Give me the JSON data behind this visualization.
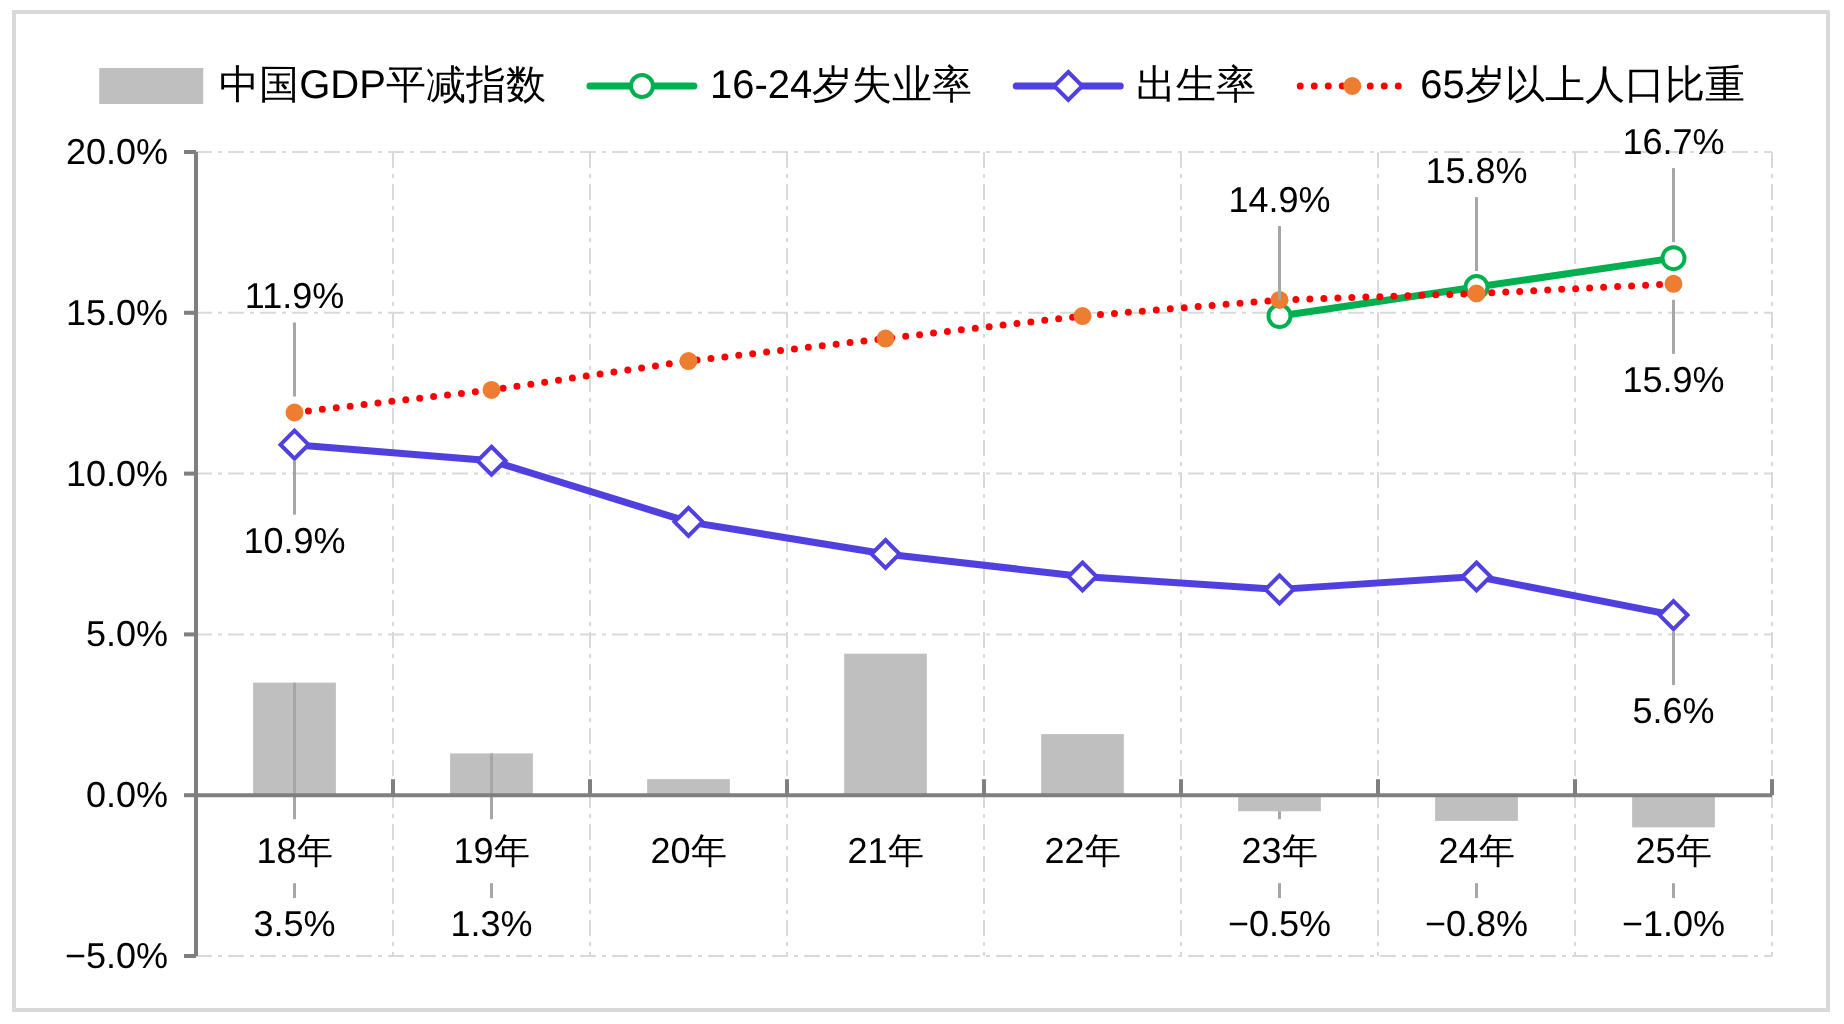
{
  "chart_data": {
    "type": "bar",
    "categories": [
      "18年",
      "19年",
      "20年",
      "21年",
      "22年",
      "23年",
      "24年",
      "25年"
    ],
    "ylim": [
      -5,
      20
    ],
    "yticks": [
      {
        "value": -5,
        "label": "−5.0%"
      },
      {
        "value": 0,
        "label": "0.0%"
      },
      {
        "value": 5,
        "label": "5.0%"
      },
      {
        "value": 10,
        "label": "10.0%"
      },
      {
        "value": 15,
        "label": "15.0%"
      },
      {
        "value": 20,
        "label": "20.0%"
      }
    ],
    "grid": true,
    "legend": "top",
    "series": [
      {
        "name": "中国GDP平减指数",
        "color": "#bfbfbf",
        "values": [
          3.5,
          1.3,
          0.5,
          4.4,
          1.9,
          -0.5,
          -0.8,
          -1.0
        ],
        "value_labels": [
          "3.5%",
          "1.3%",
          null,
          null,
          null,
          "−0.5%",
          "−0.8%",
          "−1.0%"
        ]
      },
      {
        "name": "16-24岁失业率",
        "type": "line",
        "color": "#00b050",
        "marker": "circle",
        "values": [
          null,
          null,
          null,
          null,
          null,
          14.9,
          15.8,
          16.7
        ],
        "value_labels": [
          null,
          null,
          null,
          null,
          null,
          "14.9%",
          "15.8%",
          "16.7%"
        ]
      },
      {
        "name": "出生率",
        "type": "line",
        "color": "#5040e0",
        "marker": "diamond",
        "values": [
          10.9,
          10.4,
          8.5,
          7.5,
          6.8,
          6.4,
          6.8,
          5.6
        ],
        "value_labels": [
          "10.9%",
          null,
          null,
          null,
          null,
          null,
          null,
          "5.6%"
        ]
      },
      {
        "name": "65岁以上人口比重",
        "type": "line",
        "color": "#ff0000",
        "colors": [
          "#ed7d31",
          "#ed7d31",
          "#ed7d31",
          "#ed7d31",
          "#ed7d31",
          "#ed7d31",
          "#ed7d31",
          "#ed7d31"
        ],
        "marker": "circle",
        "line_style": "dotted",
        "values": [
          11.9,
          12.6,
          13.5,
          14.2,
          14.9,
          15.4,
          15.6,
          15.9
        ],
        "value_labels": [
          "11.9%",
          null,
          null,
          null,
          null,
          null,
          null,
          "15.9%"
        ]
      }
    ]
  }
}
